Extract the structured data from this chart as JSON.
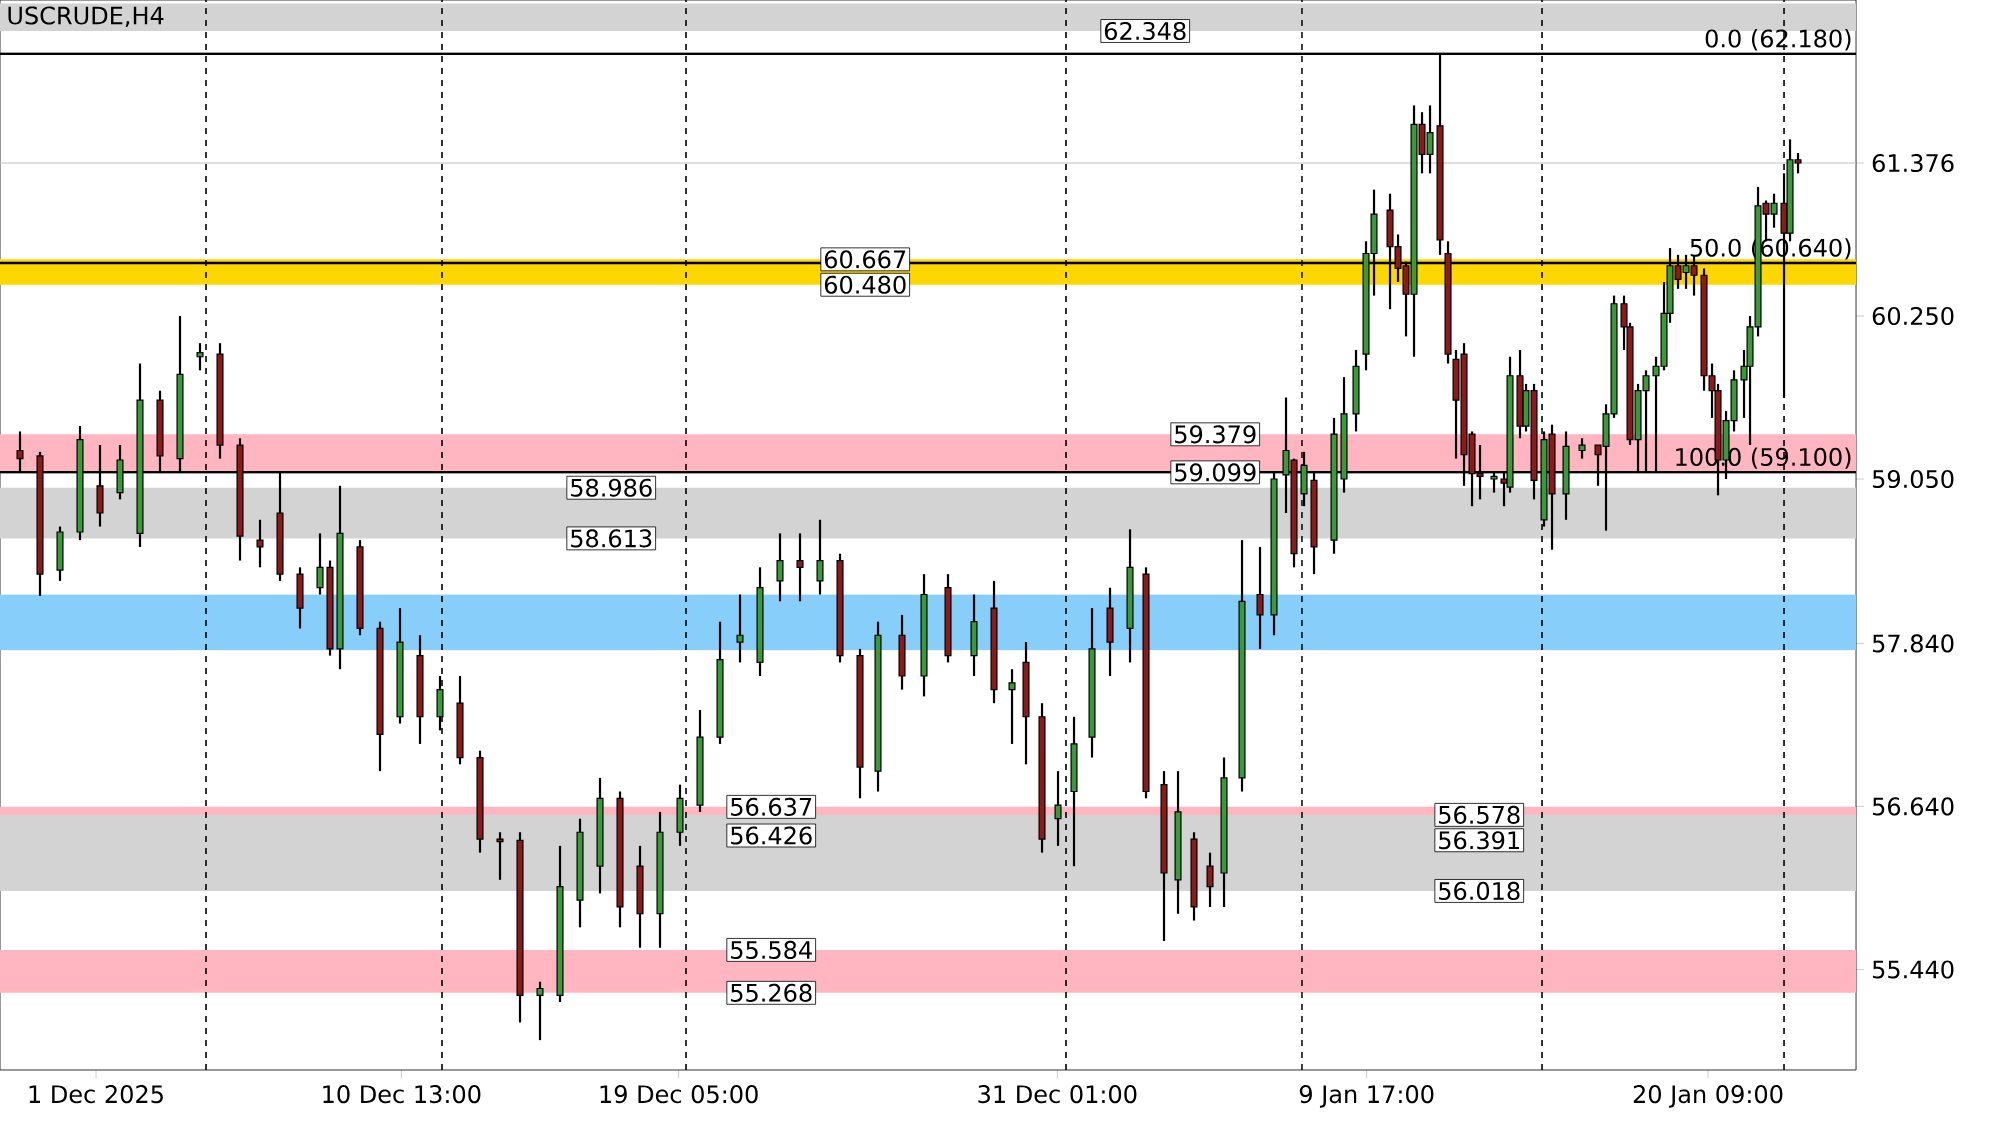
{
  "chart_data": {
    "type": "candlestick",
    "title": "USCRUDE,H4",
    "x": [
      "2025-11-28T15:00",
      "2025-11-29T06:00",
      "2025-11-29T21:00",
      "2025-11-30T12:00",
      "2025-12-01T03:00",
      "2025-12-01T18:00",
      "2025-12-02T09:00",
      "2025-12-03T00:00",
      "2025-12-03T15:00",
      "2025-12-04T06:00",
      "2025-12-04T21:00",
      "2025-12-05T12:00",
      "2025-12-06T03:00",
      "2025-12-06T18:00",
      "2025-12-07T09:00",
      "2025-12-08T00:00",
      "2025-12-08T07:30",
      "2025-12-08T15:00",
      "2025-12-09T06:00",
      "2025-12-09T21:00",
      "2025-12-10T12:00",
      "2025-12-11T03:00",
      "2025-12-11T18:00",
      "2025-12-12T09:00",
      "2025-12-13T00:00",
      "2025-12-13T15:00",
      "2025-12-14T06:00",
      "2025-12-14T21:00",
      "2025-12-15T12:00",
      "2025-12-16T03:00",
      "2025-12-16T18:00",
      "2025-12-17T09:00",
      "2025-12-18T00:00",
      "2025-12-18T15:00",
      "2025-12-19T06:00",
      "2025-12-19T21:00",
      "2025-12-20T12:00",
      "2025-12-21T03:00",
      "2025-12-21T18:00",
      "2025-12-22T09:00",
      "2025-12-23T00:00",
      "2025-12-23T15:00",
      "2025-12-24T06:00",
      "2025-12-24T21:00",
      "2025-12-25T10:30",
      "2025-12-26T04:30",
      "2025-12-26T21:00",
      "2025-12-27T15:00",
      "2025-12-28T10:30",
      "2025-12-29T01:30",
      "2025-12-29T15:00",
      "2025-12-30T01:30",
      "2025-12-30T13:30",
      "2025-12-31T01:30",
      "2025-12-31T13:30",
      "2026-01-01T03:00",
      "2026-01-01T16:30",
      "2026-01-02T07:30",
      "2026-01-02T19:30",
      "2026-01-03T09:00",
      "2026-01-03T19:30",
      "2026-01-04T07:30",
      "2026-01-04T19:30",
      "2026-01-05T06:00",
      "2026-01-05T19:30",
      "2026-01-06T09:00",
      "2026-01-06T19:30",
      "2026-01-07T04:30",
      "2026-01-07T10:30",
      "2026-01-07T18:00",
      "2026-01-08T01:30",
      "2026-01-08T16:30",
      "2026-01-09T00:00",
      "2026-01-09T09:00",
      "2026-01-09T16:30",
      "2026-01-09T22:30",
      "2026-01-10T10:30",
      "2026-01-10T16:30",
      "2026-01-10T22:30",
      "2026-01-11T04:30",
      "2026-01-11T10:30",
      "2026-01-11T16:30",
      "2026-01-12T00:00",
      "2026-01-12T06:00",
      "2026-01-12T12:00",
      "2026-01-12T18:00",
      "2026-01-13T00:00",
      "2026-01-13T06:00",
      "2026-01-13T16:30",
      "2026-01-14T00:00",
      "2026-01-14T04:30",
      "2026-01-14T12:00",
      "2026-01-14T16:30",
      "2026-01-14T22:30",
      "2026-01-15T06:00",
      "2026-01-15T12:00",
      "2026-01-15T22:30",
      "2026-01-16T10:30",
      "2026-01-16T22:30",
      "2026-01-17T04:30",
      "2026-01-17T10:30",
      "2026-01-17T18:00",
      "2026-01-17T22:30",
      "2026-01-18T04:30",
      "2026-01-18T10:30",
      "2026-01-18T18:00",
      "2026-01-19T00:00",
      "2026-01-19T04:30",
      "2026-01-19T10:30",
      "2026-01-19T16:30",
      "2026-01-19T22:30",
      "2026-01-20T06:00",
      "2026-01-20T12:00",
      "2026-01-20T16:30",
      "2026-01-20T22:30",
      "2026-01-21T04:30",
      "2026-01-21T12:00",
      "2026-01-21T16:30",
      "2026-01-21T22:30",
      "2026-01-22T04:30",
      "2026-01-22T10:30",
      "2026-01-22T18:00",
      "2026-01-22T22:30",
      "2026-01-23T04:30"
    ],
    "ohlc": [
      [
        59.26,
        59.4,
        59.1,
        59.2
      ],
      [
        59.22,
        59.25,
        58.19,
        58.35
      ],
      [
        58.38,
        58.7,
        58.3,
        58.66
      ],
      [
        58.66,
        59.44,
        58.6,
        59.34
      ],
      [
        59.0,
        59.3,
        58.7,
        58.8
      ],
      [
        58.95,
        59.3,
        58.9,
        59.19
      ],
      [
        58.65,
        59.9,
        58.55,
        59.63
      ],
      [
        59.63,
        59.7,
        59.1,
        59.22
      ],
      [
        59.2,
        60.25,
        59.1,
        59.82
      ],
      [
        59.95,
        60.05,
        59.85,
        59.98
      ],
      [
        59.97,
        60.05,
        59.2,
        59.3
      ],
      [
        59.3,
        59.35,
        58.45,
        58.63
      ],
      [
        58.6,
        58.75,
        58.4,
        58.55
      ],
      [
        58.8,
        59.1,
        58.3,
        58.35
      ],
      [
        58.35,
        58.4,
        57.95,
        58.1
      ],
      [
        58.25,
        58.65,
        58.2,
        58.4
      ],
      [
        58.4,
        58.45,
        57.75,
        57.8
      ],
      [
        57.8,
        59.0,
        57.65,
        58.65
      ],
      [
        58.55,
        58.6,
        57.9,
        57.95
      ],
      [
        57.95,
        58.0,
        56.9,
        57.17
      ],
      [
        57.3,
        58.1,
        57.25,
        57.85
      ],
      [
        57.75,
        57.9,
        57.1,
        57.3
      ],
      [
        57.3,
        57.6,
        57.2,
        57.5
      ],
      [
        57.4,
        57.6,
        56.95,
        57.0
      ],
      [
        57.0,
        57.05,
        56.3,
        56.4
      ],
      [
        56.4,
        56.45,
        56.1,
        56.38
      ],
      [
        56.39,
        56.45,
        55.05,
        55.25
      ],
      [
        55.25,
        55.35,
        54.92,
        55.3
      ],
      [
        55.25,
        56.35,
        55.2,
        56.05
      ],
      [
        55.95,
        56.55,
        55.75,
        56.45
      ],
      [
        56.2,
        56.85,
        56.0,
        56.7
      ],
      [
        56.7,
        56.75,
        55.75,
        55.9
      ],
      [
        56.2,
        56.35,
        55.6,
        55.85
      ],
      [
        55.85,
        56.6,
        55.6,
        56.45
      ],
      [
        56.45,
        56.8,
        56.35,
        56.7
      ],
      [
        56.65,
        57.35,
        56.6,
        57.15
      ],
      [
        57.15,
        58.0,
        57.1,
        57.72
      ],
      [
        57.85,
        58.2,
        57.7,
        57.9
      ],
      [
        57.7,
        58.4,
        57.6,
        58.25
      ],
      [
        58.3,
        58.65,
        58.15,
        58.45
      ],
      [
        58.45,
        58.65,
        58.15,
        58.4
      ],
      [
        58.3,
        58.75,
        58.2,
        58.45
      ],
      [
        58.45,
        58.5,
        57.7,
        57.75
      ],
      [
        57.75,
        57.8,
        56.7,
        56.93
      ],
      [
        56.9,
        58.0,
        56.75,
        57.9
      ],
      [
        57.9,
        58.05,
        57.5,
        57.6
      ],
      [
        57.6,
        58.35,
        57.45,
        58.2
      ],
      [
        58.25,
        58.35,
        57.7,
        57.75
      ],
      [
        57.75,
        58.2,
        57.6,
        58.0
      ],
      [
        58.1,
        58.3,
        57.4,
        57.5
      ],
      [
        57.5,
        57.65,
        57.1,
        57.55
      ],
      [
        57.7,
        57.85,
        56.95,
        57.3
      ],
      [
        57.3,
        57.4,
        56.3,
        56.4
      ],
      [
        56.55,
        56.9,
        56.35,
        56.65
      ],
      [
        56.75,
        57.3,
        56.2,
        57.1
      ],
      [
        57.15,
        58.1,
        57.0,
        57.8
      ],
      [
        58.1,
        58.25,
        57.6,
        57.85
      ],
      [
        57.95,
        58.68,
        57.7,
        58.4
      ],
      [
        58.35,
        58.4,
        56.7,
        56.75
      ],
      [
        56.8,
        56.9,
        55.65,
        56.15
      ],
      [
        56.1,
        56.9,
        55.85,
        56.6
      ],
      [
        56.4,
        56.45,
        55.8,
        55.9
      ],
      [
        56.2,
        56.3,
        55.9,
        56.05
      ],
      [
        56.15,
        57.0,
        55.9,
        56.85
      ],
      [
        56.85,
        58.6,
        56.75,
        58.15
      ],
      [
        58.2,
        58.55,
        57.8,
        58.05
      ],
      [
        58.05,
        59.1,
        57.9,
        59.05
      ],
      [
        59.08,
        59.65,
        58.8,
        59.26
      ],
      [
        59.19,
        59.2,
        58.4,
        58.5
      ],
      [
        58.94,
        59.25,
        58.85,
        59.15
      ],
      [
        59.04,
        59.1,
        58.35,
        58.55
      ],
      [
        58.6,
        59.5,
        58.5,
        59.38
      ],
      [
        59.05,
        59.8,
        58.95,
        59.53
      ],
      [
        59.53,
        60.0,
        59.4,
        59.88
      ],
      [
        59.97,
        60.8,
        59.85,
        60.71
      ],
      [
        60.71,
        61.18,
        60.4,
        61.0
      ],
      [
        61.03,
        61.15,
        60.3,
        60.76
      ],
      [
        60.76,
        60.85,
        60.5,
        60.6
      ],
      [
        60.62,
        60.65,
        60.1,
        60.41
      ],
      [
        60.41,
        61.8,
        59.95,
        61.66
      ],
      [
        61.66,
        61.75,
        61.3,
        61.44
      ],
      [
        61.44,
        61.8,
        61.3,
        61.6
      ],
      [
        61.65,
        62.18,
        60.7,
        60.81
      ],
      [
        60.71,
        60.8,
        59.9,
        59.97
      ],
      [
        59.93,
        60.0,
        59.2,
        59.63
      ],
      [
        59.97,
        60.05,
        59.0,
        59.23
      ],
      [
        59.38,
        59.4,
        58.85,
        59.09
      ],
      [
        59.09,
        59.3,
        58.9,
        59.07
      ],
      [
        59.05,
        59.1,
        58.95,
        59.07
      ],
      [
        59.05,
        59.1,
        58.85,
        59.02
      ],
      [
        58.99,
        59.95,
        58.95,
        59.81
      ],
      [
        59.81,
        60.0,
        59.35,
        59.44
      ],
      [
        59.44,
        59.75,
        59.4,
        59.7
      ],
      [
        59.7,
        59.75,
        58.9,
        59.04
      ],
      [
        58.75,
        59.4,
        58.7,
        59.34
      ],
      [
        59.38,
        59.45,
        58.53,
        58.94
      ],
      [
        58.94,
        59.4,
        58.75,
        59.29
      ],
      [
        59.26,
        59.35,
        59.2,
        59.3
      ],
      [
        59.3,
        59.3,
        59.0,
        59.23
      ],
      [
        59.29,
        59.6,
        58.67,
        59.53
      ],
      [
        59.53,
        60.4,
        59.5,
        60.34
      ],
      [
        60.34,
        60.4,
        60.0,
        60.17
      ],
      [
        60.17,
        60.2,
        59.3,
        59.34
      ],
      [
        59.34,
        59.75,
        59.1,
        59.7
      ],
      [
        59.7,
        59.85,
        59.1,
        59.81
      ],
      [
        59.81,
        59.95,
        59.1,
        59.88
      ],
      [
        59.88,
        60.5,
        59.85,
        60.27
      ],
      [
        60.27,
        60.75,
        60.2,
        60.62
      ],
      [
        60.62,
        60.7,
        60.45,
        60.52
      ],
      [
        60.57,
        60.7,
        60.45,
        60.62
      ],
      [
        60.62,
        60.7,
        60.4,
        60.55
      ],
      [
        60.55,
        60.6,
        59.7,
        59.81
      ],
      [
        59.81,
        59.9,
        59.5,
        59.7
      ],
      [
        59.7,
        59.75,
        58.93,
        59.19
      ],
      [
        59.19,
        59.55,
        59.05,
        59.48
      ],
      [
        59.48,
        59.85,
        59.4,
        59.78
      ],
      [
        59.78,
        60.0,
        59.5,
        59.88
      ],
      [
        59.88,
        60.25,
        59.3,
        60.17
      ],
      [
        60.17,
        61.2,
        60.1,
        61.06
      ],
      [
        61.08,
        61.1,
        60.8,
        61.0
      ],
      [
        61.0,
        61.15,
        60.9,
        61.08
      ],
      [
        61.08,
        61.3,
        59.65,
        60.86
      ],
      [
        60.86,
        61.55,
        60.8,
        61.4
      ],
      [
        61.4,
        61.45,
        61.3,
        61.376
      ]
    ],
    "xlim": [
      "2025-11-28T00:00",
      "2026-01-25T00:00"
    ],
    "ylim": [
      54.7,
      62.576
    ],
    "xticks": [
      {
        "value": "2025-12-01T00:00",
        "label": "1 Dec 2025"
      },
      {
        "value": "2025-12-10T13:00",
        "label": "10 Dec 13:00"
      },
      {
        "value": "2025-12-19T05:00",
        "label": "19 Dec 05:00"
      },
      {
        "value": "2025-12-31T01:00",
        "label": "31 Dec 01:00"
      },
      {
        "value": "2026-01-09T17:00",
        "label": "9 Jan 17:00"
      },
      {
        "value": "2026-01-20T09:00",
        "label": "20 Jan 09:00"
      }
    ],
    "yticks": [
      {
        "value": 55.44,
        "label": "55.440"
      },
      {
        "value": 56.64,
        "label": "56.640"
      },
      {
        "value": 57.84,
        "label": "57.840"
      },
      {
        "value": 59.05,
        "label": "59.050"
      },
      {
        "value": 60.25,
        "label": "60.250"
      },
      {
        "value": 61.376,
        "label": "61.376"
      }
    ],
    "bands": [
      {
        "axis": "y",
        "from": 57.79,
        "to": 58.2,
        "color": "#87cefa"
      },
      {
        "axis": "y",
        "from": 58.613,
        "to": 58.986,
        "color": "#d3d3d3"
      },
      {
        "axis": "y",
        "from": 60.48,
        "to": 60.667,
        "color": "#ffd700"
      },
      {
        "axis": "y",
        "from": 59.099,
        "to": 59.379,
        "color": "#ffb6c1"
      },
      {
        "axis": "y",
        "from": 56.426,
        "to": 56.637,
        "color": "#ffb6c1"
      },
      {
        "axis": "y",
        "from": 55.268,
        "to": 55.584,
        "color": "#ffb6c1"
      },
      {
        "axis": "y",
        "from": 56.018,
        "to": 56.578,
        "color": "#d3d3d3"
      },
      {
        "axis": "y",
        "from": 62.348,
        "to": 62.55,
        "color": "#d3d3d3"
      }
    ],
    "ref_lines": [
      {
        "axis": "x",
        "value": "2025-12-04T10:30",
        "color": "#000000",
        "line_style": "dashed"
      },
      {
        "axis": "x",
        "value": "2025-12-11T19:30",
        "color": "#000000",
        "line_style": "dashed"
      },
      {
        "axis": "x",
        "value": "2025-12-19T10:30",
        "color": "#000000",
        "line_style": "dashed"
      },
      {
        "axis": "x",
        "value": "2025-12-31T07:30",
        "color": "#000000",
        "line_style": "dashed"
      },
      {
        "axis": "x",
        "value": "2026-01-07T16:30",
        "color": "#000000",
        "line_style": "dashed"
      },
      {
        "axis": "x",
        "value": "2026-01-15T04:30",
        "color": "#000000",
        "line_style": "dashed"
      },
      {
        "axis": "x",
        "value": "2026-01-22T18:00",
        "color": "#000000",
        "line_style": "dashed"
      },
      {
        "axis": "y",
        "value": 61.376,
        "color": "#c0c0c0",
        "line_style": "solid"
      },
      {
        "axis": "y",
        "value": 62.18,
        "color": "#000000",
        "line_style": "solid",
        "label": "0.0 (62.180)"
      },
      {
        "axis": "y",
        "value": 60.64,
        "color": "#000000",
        "line_style": "solid",
        "label": "50.0 (60.640)"
      },
      {
        "axis": "y",
        "value": 59.1,
        "color": "#000000",
        "line_style": "solid",
        "label": "100.0 (59.100)"
      }
    ],
    "annotations": [
      {
        "text": "62.348",
        "x": "2026-01-04T04:30",
        "y": 62.348
      },
      {
        "text": "60.667",
        "x": "2025-12-26T10:30",
        "y": 60.667
      },
      {
        "text": "60.480",
        "x": "2025-12-26T10:30",
        "y": 60.48
      },
      {
        "text": "58.986",
        "x": "2025-12-18T12:00",
        "y": 58.986
      },
      {
        "text": "58.613",
        "x": "2025-12-18T12:00",
        "y": 58.613
      },
      {
        "text": "59.379",
        "x": "2026-01-06T09:00",
        "y": 59.379
      },
      {
        "text": "59.099",
        "x": "2026-01-06T09:00",
        "y": 59.099
      },
      {
        "text": "56.637",
        "x": "2025-12-23T12:00",
        "y": 56.637
      },
      {
        "text": "56.426",
        "x": "2025-12-23T12:00",
        "y": 56.426
      },
      {
        "text": "55.584",
        "x": "2025-12-23T12:00",
        "y": 55.584
      },
      {
        "text": "55.268",
        "x": "2025-12-23T12:00",
        "y": 55.268
      },
      {
        "text": "56.578",
        "x": "2026-01-14T15:00",
        "y": 56.578
      },
      {
        "text": "56.391",
        "x": "2026-01-14T15:00",
        "y": 56.391
      },
      {
        "text": "56.018",
        "x": "2026-01-14T15:00",
        "y": 56.018
      }
    ]
  }
}
